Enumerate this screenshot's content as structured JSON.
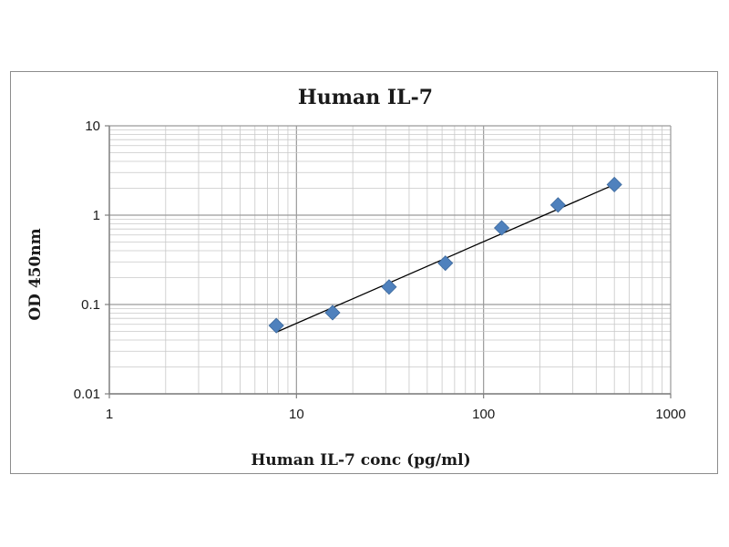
{
  "chart_data": {
    "type": "scatter",
    "title": "Human IL-7",
    "xlabel": "Human IL-7 conc (pg/ml)",
    "ylabel": "OD 450nm",
    "xscale": "log",
    "yscale": "log",
    "xlim": [
      1,
      1000
    ],
    "ylim": [
      0.01,
      10
    ],
    "x_tick_labels": [
      "1",
      "10",
      "100",
      "1000"
    ],
    "y_tick_labels": [
      "0.01",
      "0.1",
      "1",
      "10"
    ],
    "grid": true,
    "legend": "none",
    "series": [
      {
        "x": [
          7.8,
          15.6,
          31.25,
          62.5,
          125,
          250,
          500
        ],
        "y": [
          0.058,
          0.081,
          0.157,
          0.29,
          0.72,
          1.3,
          2.2
        ],
        "marker": "diamond",
        "color": "#4f81bd"
      }
    ],
    "trendline": {
      "type": "power",
      "x": [
        7.8,
        500
      ],
      "y": [
        0.049,
        2.2
      ],
      "color": "#000000"
    }
  }
}
